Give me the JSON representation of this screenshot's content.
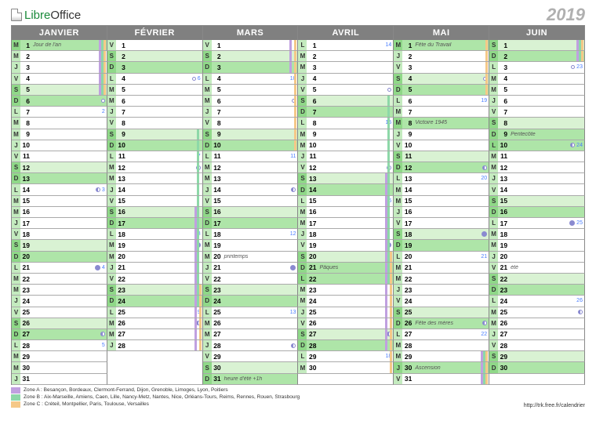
{
  "brand": {
    "libre": "Libre",
    "office": "Office"
  },
  "year": "2019",
  "url": "http://trk.free.fr/calendrier",
  "colors": {
    "header_bg": "#808080",
    "holiday_bg": "#aee5a8",
    "saturday_bg": "#d9f2d3",
    "dow_bg": "#c4ebbf",
    "zone_a": "#c0a0e0",
    "zone_b": "#8dd8a8",
    "zone_c": "#f5c888",
    "moon": "#8a8ad0",
    "week_num": "#4a7eff"
  },
  "legend": [
    {
      "color": "#c0a0e0",
      "text": "Zone A : Besançon, Bordeaux, Clermont-Ferrand, Dijon, Grenoble, Limoges, Lyon, Poitiers"
    },
    {
      "color": "#8dd8a8",
      "text": "Zone B : Aix-Marseille, Amiens, Caen, Lille, Nancy-Metz, Nantes, Nice, Orléans-Tours, Reims, Rennes, Rouen, Strasbourg"
    },
    {
      "color": "#f5c888",
      "text": "Zone C : Créteil, Montpellier, Paris, Toulouse, Versailles"
    }
  ],
  "months": [
    {
      "name": "JANVIER",
      "ndays": 31,
      "first_dow": 1,
      "holidays": {
        "1": "Jour de l'an"
      },
      "labels": {},
      "weeks": {
        "7": "2",
        "14": "3",
        "21": "4",
        "28": "5"
      },
      "moons": {
        "6": "new",
        "14": "half",
        "21": "full",
        "27": "half"
      },
      "zones_all": [
        1,
        2,
        3,
        4,
        5
      ],
      "zones": {}
    },
    {
      "name": "FÉVRIER",
      "ndays": 28,
      "first_dow": 4,
      "holidays": {},
      "labels": {},
      "weeks": {
        "4": "6",
        "11": "7",
        "18": "8",
        "25": "9"
      },
      "moons": {
        "4": "new",
        "12": "half",
        "19": "full",
        "26": "half"
      },
      "zones_all": [],
      "zones": {
        "9": [
          "b"
        ],
        "10": [
          "b"
        ],
        "11": [
          "b"
        ],
        "12": [
          "b"
        ],
        "13": [
          "b"
        ],
        "14": [
          "b"
        ],
        "15": [
          "b"
        ],
        "16": [
          "a",
          "b"
        ],
        "17": [
          "a",
          "b"
        ],
        "18": [
          "a",
          "b"
        ],
        "19": [
          "a",
          "b"
        ],
        "20": [
          "a",
          "b"
        ],
        "21": [
          "a",
          "b"
        ],
        "22": [
          "a",
          "b"
        ],
        "23": [
          "a",
          "b",
          "c"
        ],
        "24": [
          "a",
          "b",
          "c"
        ],
        "25": [
          "a",
          "c"
        ],
        "26": [
          "a",
          "c"
        ],
        "27": [
          "a",
          "c"
        ],
        "28": [
          "a",
          "c"
        ]
      }
    },
    {
      "name": "MARS",
      "ndays": 31,
      "first_dow": 4,
      "holidays": {},
      "labels": {
        "20": "printemps",
        "31": "heure d'été +1h"
      },
      "weeks": {
        "4": "10",
        "11": "11",
        "18": "12",
        "25": "13"
      },
      "moons": {
        "6": "new",
        "14": "half",
        "21": "full",
        "28": "half"
      },
      "zones_all": [],
      "zones": {
        "1": [
          "a",
          "c"
        ],
        "2": [
          "a",
          "c"
        ],
        "3": [
          "a",
          "c"
        ],
        "4": [
          "c"
        ],
        "5": [
          "c"
        ],
        "6": [
          "c"
        ],
        "7": [
          "c"
        ],
        "8": [
          "c"
        ],
        "9": [
          "c"
        ],
        "10": [
          "c"
        ]
      }
    },
    {
      "name": "AVRIL",
      "ndays": 30,
      "first_dow": 0,
      "holidays": {
        "21": "Pâques",
        "22": ""
      },
      "labels": {},
      "weeks": {
        "1": "14",
        "8": "15",
        "15": "16",
        "22": "17",
        "29": "18"
      },
      "moons": {
        "5": "new",
        "12": "half",
        "19": "full",
        "27": "half"
      },
      "zones_all": [],
      "zones": {
        "6": [
          "b"
        ],
        "7": [
          "b"
        ],
        "8": [
          "b"
        ],
        "9": [
          "b"
        ],
        "10": [
          "b"
        ],
        "11": [
          "b"
        ],
        "12": [
          "b"
        ],
        "13": [
          "a",
          "b"
        ],
        "14": [
          "a",
          "b"
        ],
        "15": [
          "a",
          "b"
        ],
        "16": [
          "a",
          "b"
        ],
        "17": [
          "a",
          "b"
        ],
        "18": [
          "a",
          "b"
        ],
        "19": [
          "a",
          "b"
        ],
        "20": [
          "a",
          "b",
          "c"
        ],
        "21": [
          "a",
          "b",
          "c"
        ],
        "22": [
          "a",
          "b",
          "c"
        ],
        "23": [
          "a",
          "c"
        ],
        "24": [
          "a",
          "c"
        ],
        "25": [
          "a",
          "c"
        ],
        "26": [
          "a",
          "c"
        ],
        "27": [
          "a",
          "c"
        ],
        "28": [
          "a",
          "c"
        ],
        "29": [
          "c"
        ],
        "30": [
          "c"
        ]
      }
    },
    {
      "name": "MAI",
      "ndays": 31,
      "first_dow": 2,
      "holidays": {
        "1": "Fête du Travail",
        "8": "Victoire 1945",
        "26": "Fête des mères",
        "30": "Ascension"
      },
      "labels": {},
      "weeks": {
        "6": "19",
        "13": "20",
        "20": "21",
        "27": "22"
      },
      "moons": {
        "4": "new",
        "12": "half",
        "18": "full",
        "26": "half"
      },
      "zones_all": [],
      "zones": {
        "1": [
          "c"
        ],
        "2": [
          "c"
        ],
        "3": [
          "c"
        ],
        "4": [
          "c"
        ],
        "5": [
          "c"
        ],
        "29": [
          "a",
          "b",
          "c"
        ],
        "30": [
          "a",
          "b",
          "c"
        ],
        "31": [
          "a",
          "b",
          "c"
        ]
      }
    },
    {
      "name": "JUIN",
      "ndays": 30,
      "first_dow": 5,
      "holidays": {
        "9": "Pentecôte",
        "10": ""
      },
      "labels": {
        "21": "été"
      },
      "weeks": {
        "3": "23",
        "10": "24",
        "17": "25",
        "24": "26"
      },
      "moons": {
        "3": "new",
        "10": "half",
        "17": "full",
        "25": "half"
      },
      "zones_all": [
        1,
        2
      ],
      "zones": {}
    }
  ],
  "dow_letters": [
    "L",
    "M",
    "M",
    "J",
    "V",
    "S",
    "D"
  ]
}
